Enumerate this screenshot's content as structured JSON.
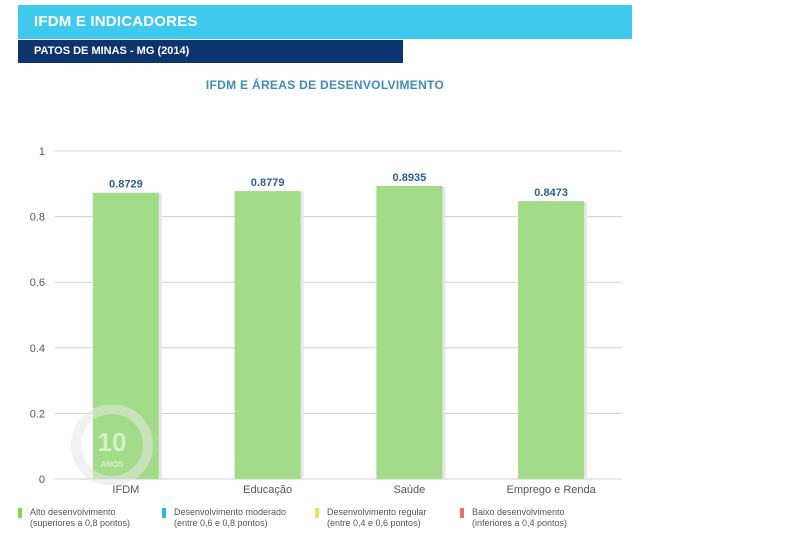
{
  "header": {
    "title": "IFDM E INDICADORES",
    "subtitle": "PATOS DE MINAS - MG (2014)"
  },
  "colors": {
    "header_band": "#40c9ee",
    "subheader_band": "#0e3470",
    "bar": "#a3dc88",
    "value_label": "#2b5e9a"
  },
  "chart_data": {
    "type": "bar",
    "title": "IFDM E ÁREAS DE DESENVOLVIMENTO",
    "categories": [
      "IFDM",
      "Educação",
      "Saúde",
      "Emprego e Renda"
    ],
    "values": [
      0.8729,
      0.8779,
      0.8935,
      0.8473
    ],
    "value_labels": [
      "0.8729",
      "0.8779",
      "0.8935",
      "0.8473"
    ],
    "xlabel": "",
    "ylabel": "",
    "ylim": [
      0,
      1
    ],
    "yticks": [
      0,
      0.2,
      0.4,
      0.6,
      0.8,
      1
    ],
    "ytick_labels": [
      "0",
      "0.2",
      "0.4",
      "0.6",
      "0.8",
      "1"
    ],
    "grid": true
  },
  "legend": [
    {
      "label": "Alto desenvolvimento",
      "detail": "(superiores a 0,8 pontos)",
      "color": "#7ed957"
    },
    {
      "label": "Desenvolvimento moderado",
      "detail": "(entre 0,6 e 0,8 pontos)",
      "color": "#2bb5e8"
    },
    {
      "label": "Desenvolvimento regular",
      "detail": "(entre 0,4 e 0,6 pontos)",
      "color": "#f2dc5d"
    },
    {
      "label": "Baixo desenvolvimento",
      "detail": "(inferiores a 0,4 pontos)",
      "color": "#f26b6b"
    }
  ],
  "watermark": {
    "number": "10",
    "word": "ANOS"
  }
}
